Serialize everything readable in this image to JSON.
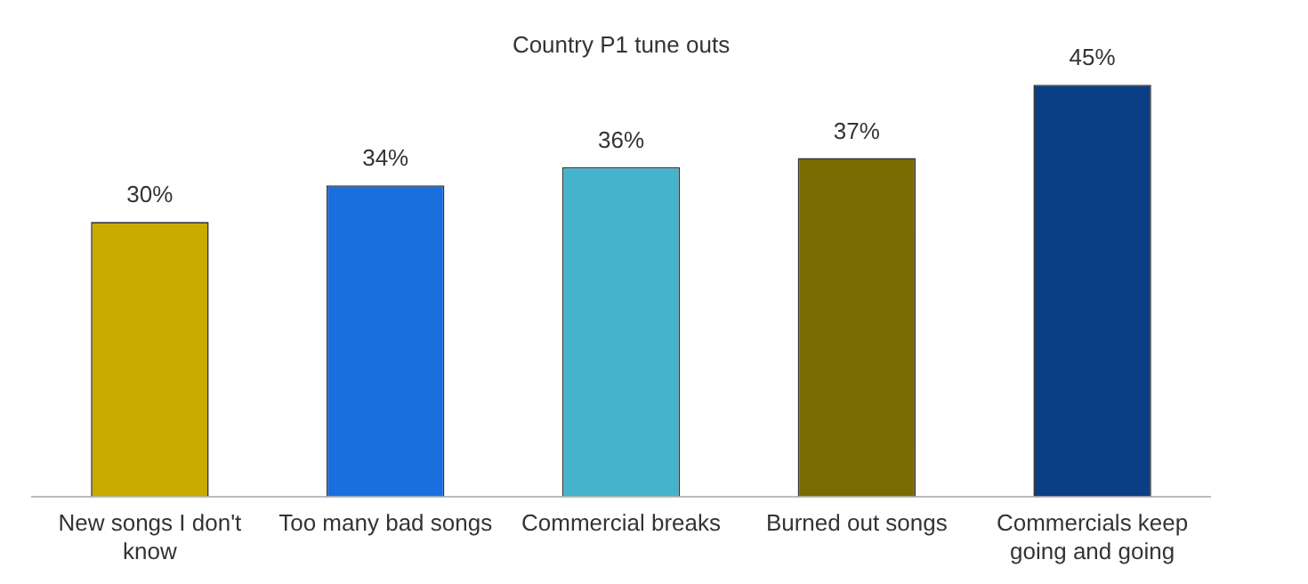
{
  "chart_data": {
    "type": "bar",
    "title": "Country P1 tune outs",
    "categories": [
      "New songs I don't know",
      "Too many bad songs",
      "Commercial breaks",
      "Burned out songs",
      "Commercials keep going and going"
    ],
    "values": [
      30,
      34,
      36,
      37,
      45
    ],
    "value_labels": [
      "30%",
      "34%",
      "36%",
      "37%",
      "45%"
    ],
    "colors": [
      "#c9ab00",
      "#1a6fdf",
      "#45b3cc",
      "#7a6a00",
      "#0a3f85"
    ],
    "grid": false,
    "legend": false
  }
}
